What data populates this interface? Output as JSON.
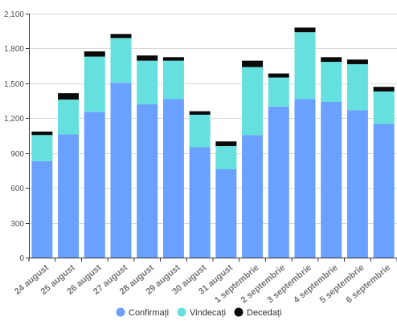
{
  "chart_data": {
    "type": "bar",
    "stacked": true,
    "title": "",
    "xlabel": "",
    "ylabel": "",
    "ylim": [
      0,
      2100
    ],
    "yticks": [
      0,
      300,
      600,
      900,
      1200,
      1500,
      1800,
      2100
    ],
    "ytick_labels": [
      "0",
      "300",
      "600",
      "900",
      "1,200",
      "1,500",
      "1,800",
      "2,100"
    ],
    "grid": true,
    "legend_position": "bottom",
    "categories": [
      "24 august",
      "25 august",
      "26 august",
      "27 august",
      "28 august",
      "29 august",
      "30 august",
      "31 august",
      "1 septembrie",
      "2 septembrie",
      "3 septembrie",
      "4 septembrie",
      "5 septembrie",
      "6 septembrie"
    ],
    "series": [
      {
        "name": "Confirmați",
        "color": "#6aa0ff",
        "values": [
          830,
          1060,
          1255,
          1505,
          1320,
          1365,
          950,
          760,
          1055,
          1300,
          1365,
          1340,
          1270,
          1150
        ]
      },
      {
        "name": "Vindecați",
        "color": "#66e0de",
        "values": [
          225,
          300,
          475,
          385,
          375,
          330,
          280,
          200,
          585,
          250,
          575,
          345,
          395,
          280
        ]
      },
      {
        "name": "Decedați",
        "color": "#0a0a0a",
        "values": [
          30,
          55,
          45,
          35,
          45,
          30,
          30,
          40,
          55,
          35,
          40,
          40,
          40,
          40
        ]
      }
    ]
  }
}
